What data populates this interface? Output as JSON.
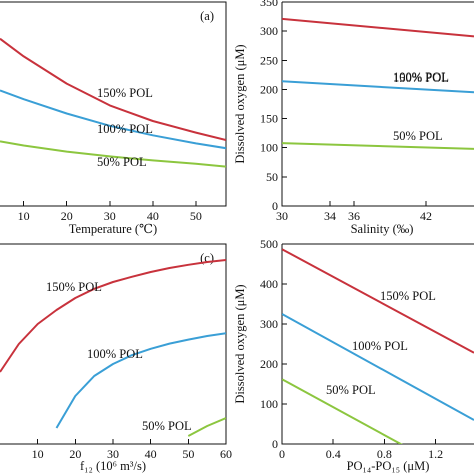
{
  "colors": {
    "150% POL": "#c8323c",
    "100% POL": "#3a9fd6",
    "50% POL": "#8cc63f"
  },
  "chart_data": [
    {
      "type": "line",
      "panel_label": "(a)",
      "xlabel": "Temperature (℃)",
      "ylabel": "",
      "xlim": [
        4.5,
        57
      ],
      "ylim": [
        50,
        350
      ],
      "xticks": [
        "10",
        "20",
        "30",
        "40",
        "50"
      ],
      "yticks": [],
      "x": [
        4.5,
        10,
        20,
        30,
        40,
        50,
        57
      ],
      "series": [
        {
          "name": "150% POL",
          "values": [
            296,
            270,
            230,
            198,
            175,
            158,
            147
          ]
        },
        {
          "name": "100% POL",
          "values": [
            220,
            207,
            186,
            168,
            154,
            142,
            135
          ]
        },
        {
          "name": "50% POL",
          "values": [
            145,
            139,
            130,
            123,
            117,
            112,
            108
          ]
        }
      ]
    },
    {
      "type": "line",
      "panel_label": "",
      "xlabel": "Salinity (‰)",
      "ylabel": "Dissolved oxygen (μM)",
      "xlim": [
        30,
        46
      ],
      "ylim": [
        0,
        350
      ],
      "xticks": [
        "30",
        "34",
        "36",
        "42"
      ],
      "yticks": [
        "0",
        "50",
        "100",
        "150",
        "200",
        "250",
        "300",
        "350"
      ],
      "x": [
        30,
        46
      ],
      "series": [
        {
          "name": "150% POL",
          "values": [
            321,
            291
          ]
        },
        {
          "name": "100% POL",
          "values": [
            214,
            195
          ]
        },
        {
          "name": "50% POL",
          "values": [
            108,
            98
          ]
        }
      ]
    },
    {
      "type": "line",
      "panel_label": "(c)",
      "xlabel": "f₁₂ (10⁶ m³/s)",
      "ylabel": "",
      "xlim": [
        0,
        60
      ],
      "ylim": [
        0,
        500
      ],
      "xticks": [
        "10",
        "20",
        "30",
        "40",
        "50",
        "60"
      ],
      "yticks": [],
      "x": [
        0,
        5,
        10,
        15,
        20,
        25,
        30,
        35,
        40,
        45,
        50,
        55,
        60
      ],
      "series": [
        {
          "name": "150% POL",
          "values": [
            180,
            250,
            300,
            335,
            365,
            388,
            405,
            418,
            430,
            440,
            448,
            455,
            460
          ]
        },
        {
          "name": "100% POL",
          "values": [
            null,
            null,
            null,
            40,
            120,
            170,
            200,
            222,
            238,
            251,
            261,
            270,
            277
          ]
        },
        {
          "name": "50% POL",
          "values": [
            null,
            null,
            null,
            null,
            null,
            null,
            null,
            null,
            null,
            null,
            20,
            45,
            65
          ]
        }
      ]
    },
    {
      "type": "line",
      "panel_label": "",
      "xlabel": "PO₁₄-PO₁₅ (μM)",
      "ylabel": "Dissolved oxygen (μM)",
      "xlim": [
        0,
        1.5
      ],
      "ylim": [
        0,
        500
      ],
      "xticks": [
        "0",
        "0.4",
        "0.8",
        "1.2"
      ],
      "yticks": [
        "0",
        "100",
        "200",
        "300",
        "400",
        "500"
      ],
      "x": [
        0,
        1.5
      ],
      "series": [
        {
          "name": "150% POL",
          "values": [
            487,
            228
          ]
        },
        {
          "name": "100% POL",
          "values": [
            325,
            60
          ]
        },
        {
          "name": "50% POL",
          "values": [
            162,
            -100
          ]
        }
      ]
    }
  ]
}
